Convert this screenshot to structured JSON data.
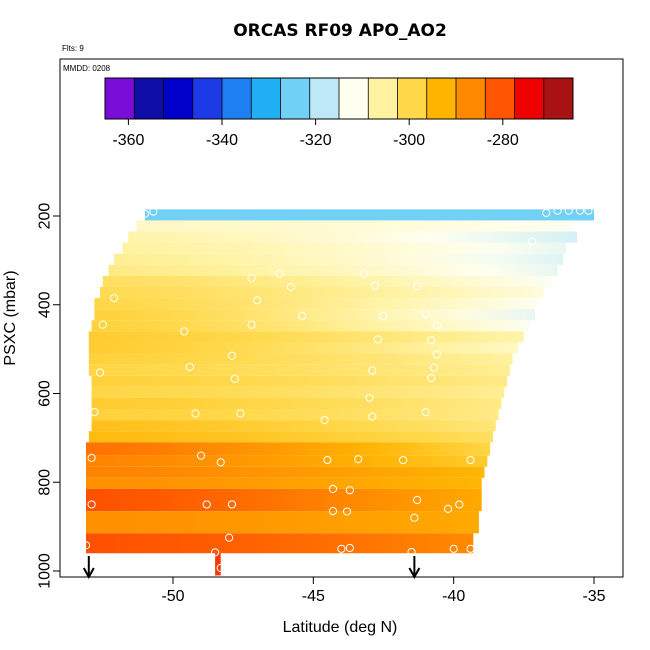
{
  "chart_data": {
    "type": "heatmap",
    "title": "ORCAS RF09 APO_AO2",
    "annotations": {
      "flights": "Flts: 9",
      "date": "MMDD: 0208"
    },
    "xlabel": "Latitude (deg N)",
    "ylabel": "PSXC (mbar)",
    "xlim": [
      -54,
      -35
    ],
    "ylim": [
      1000,
      120
    ],
    "y_reversed": true,
    "grid": false,
    "x_ticks": [
      -50,
      -45,
      -40,
      -35
    ],
    "y_ticks": [
      200,
      400,
      600,
      800,
      1000
    ],
    "colorbar": {
      "placement": "top",
      "range": [
        -365,
        -265
      ],
      "ticks": [
        -360,
        -340,
        -320,
        -300,
        -280
      ],
      "colors": [
        "#7a0dd6",
        "#0e0ea6",
        "#0000c8",
        "#1c3ae6",
        "#1e7ff0",
        "#22b0f5",
        "#70d0f5",
        "#bde8f8",
        "#fffff0",
        "#fff2a0",
        "#ffd84a",
        "#ffb400",
        "#ff8a00",
        "#ff5400",
        "#ee0000",
        "#a81212"
      ]
    },
    "rows": [
      {
        "p_top": 185,
        "p_bot": 210,
        "lat_min": -51.0,
        "lat_max": -35.0,
        "v_left": -325,
        "v_right": -325
      },
      {
        "p_top": 210,
        "p_bot": 235,
        "lat_min": -51.3,
        "lat_max": -35.8,
        "v_left": -308,
        "v_right": -312
      },
      {
        "p_top": 235,
        "p_bot": 260,
        "lat_min": -51.6,
        "lat_max": -35.6,
        "v_left": -306,
        "v_right": -316
      },
      {
        "p_top": 260,
        "p_bot": 285,
        "lat_min": -51.8,
        "lat_max": -36.0,
        "v_left": -305,
        "v_right": -314
      },
      {
        "p_top": 285,
        "p_bot": 310,
        "lat_min": -52.1,
        "lat_max": -36.1,
        "v_left": -304,
        "v_right": -315
      },
      {
        "p_top": 310,
        "p_bot": 335,
        "lat_min": -52.3,
        "lat_max": -36.3,
        "v_left": -303,
        "v_right": -314
      },
      {
        "p_top": 335,
        "p_bot": 360,
        "lat_min": -52.5,
        "lat_max": -36.5,
        "v_left": -300,
        "v_right": -312
      },
      {
        "p_top": 360,
        "p_bot": 385,
        "lat_min": -52.6,
        "lat_max": -36.8,
        "v_left": -299,
        "v_right": -310
      },
      {
        "p_top": 385,
        "p_bot": 410,
        "lat_min": -52.8,
        "lat_max": -37.0,
        "v_left": -298,
        "v_right": -312
      },
      {
        "p_top": 410,
        "p_bot": 435,
        "lat_min": -52.8,
        "lat_max": -37.1,
        "v_left": -297,
        "v_right": -314
      },
      {
        "p_top": 435,
        "p_bot": 460,
        "lat_min": -52.9,
        "lat_max": -37.3,
        "v_left": -297,
        "v_right": -312
      },
      {
        "p_top": 460,
        "p_bot": 485,
        "lat_min": -53.0,
        "lat_max": -37.5,
        "v_left": -296,
        "v_right": -306
      },
      {
        "p_top": 485,
        "p_bot": 510,
        "lat_min": -53.0,
        "lat_max": -37.7,
        "v_left": -296,
        "v_right": -308
      },
      {
        "p_top": 510,
        "p_bot": 535,
        "lat_min": -53.0,
        "lat_max": -37.9,
        "v_left": -297,
        "v_right": -305
      },
      {
        "p_top": 535,
        "p_bot": 560,
        "lat_min": -53.0,
        "lat_max": -38.0,
        "v_left": -298,
        "v_right": -304
      },
      {
        "p_top": 560,
        "p_bot": 585,
        "lat_min": -52.9,
        "lat_max": -38.1,
        "v_left": -297,
        "v_right": -303
      },
      {
        "p_top": 585,
        "p_bot": 610,
        "lat_min": -52.9,
        "lat_max": -38.2,
        "v_left": -298,
        "v_right": -304
      },
      {
        "p_top": 610,
        "p_bot": 635,
        "lat_min": -52.9,
        "lat_max": -38.3,
        "v_left": -296,
        "v_right": -303
      },
      {
        "p_top": 635,
        "p_bot": 660,
        "lat_min": -52.9,
        "lat_max": -38.4,
        "v_left": -297,
        "v_right": -303
      },
      {
        "p_top": 660,
        "p_bot": 685,
        "lat_min": -52.9,
        "lat_max": -38.5,
        "v_left": -294,
        "v_right": -302
      },
      {
        "p_top": 685,
        "p_bot": 710,
        "lat_min": -53.0,
        "lat_max": -38.6,
        "v_left": -293,
        "v_right": -300
      },
      {
        "p_top": 710,
        "p_bot": 740,
        "lat_min": -53.1,
        "lat_max": -38.7,
        "v_left": -282,
        "v_right": -298
      },
      {
        "p_top": 740,
        "p_bot": 765,
        "lat_min": -53.1,
        "lat_max": -38.8,
        "v_left": -284,
        "v_right": -296
      },
      {
        "p_top": 765,
        "p_bot": 790,
        "lat_min": -53.1,
        "lat_max": -38.9,
        "v_left": -284,
        "v_right": -292
      },
      {
        "p_top": 790,
        "p_bot": 815,
        "lat_min": -53.1,
        "lat_max": -39.0,
        "v_left": -286,
        "v_right": -292
      },
      {
        "p_top": 815,
        "p_bot": 865,
        "lat_min": -53.1,
        "lat_max": -39.0,
        "v_left": -278,
        "v_right": -290
      },
      {
        "p_top": 865,
        "p_bot": 915,
        "lat_min": -53.1,
        "lat_max": -39.1,
        "v_left": -286,
        "v_right": -290
      },
      {
        "p_top": 915,
        "p_bot": 960,
        "lat_min": -53.1,
        "lat_max": -39.3,
        "v_left": -278,
        "v_right": -285
      },
      {
        "p_top": 960,
        "p_bot": 1010,
        "lat_min": -48.5,
        "lat_max": -48.3,
        "v_left": -276,
        "v_right": -276
      }
    ],
    "points": [
      {
        "lat": -51.0,
        "p": 195
      },
      {
        "lat": -50.7,
        "p": 190
      },
      {
        "lat": -36.7,
        "p": 193
      },
      {
        "lat": -36.3,
        "p": 188
      },
      {
        "lat": -35.9,
        "p": 188
      },
      {
        "lat": -35.5,
        "p": 188
      },
      {
        "lat": -35.2,
        "p": 188
      },
      {
        "lat": -37.2,
        "p": 258
      },
      {
        "lat": -47.2,
        "p": 340
      },
      {
        "lat": -46.2,
        "p": 330
      },
      {
        "lat": -45.8,
        "p": 360
      },
      {
        "lat": -43.2,
        "p": 330
      },
      {
        "lat": -42.8,
        "p": 357
      },
      {
        "lat": -41.3,
        "p": 358
      },
      {
        "lat": -52.1,
        "p": 385
      },
      {
        "lat": -47.0,
        "p": 390
      },
      {
        "lat": -45.4,
        "p": 425
      },
      {
        "lat": -42.5,
        "p": 425
      },
      {
        "lat": -41.0,
        "p": 420
      },
      {
        "lat": -52.5,
        "p": 445
      },
      {
        "lat": -47.2,
        "p": 445
      },
      {
        "lat": -49.6,
        "p": 460
      },
      {
        "lat": -40.6,
        "p": 446
      },
      {
        "lat": -42.7,
        "p": 478
      },
      {
        "lat": -40.8,
        "p": 480
      },
      {
        "lat": -47.9,
        "p": 515
      },
      {
        "lat": -40.6,
        "p": 512
      },
      {
        "lat": -52.6,
        "p": 553
      },
      {
        "lat": -49.4,
        "p": 540
      },
      {
        "lat": -42.9,
        "p": 548
      },
      {
        "lat": -40.7,
        "p": 542
      },
      {
        "lat": -40.8,
        "p": 565
      },
      {
        "lat": -47.8,
        "p": 567
      },
      {
        "lat": -43.0,
        "p": 610
      },
      {
        "lat": -52.8,
        "p": 642
      },
      {
        "lat": -49.2,
        "p": 645
      },
      {
        "lat": -47.6,
        "p": 645
      },
      {
        "lat": -42.9,
        "p": 652
      },
      {
        "lat": -41.0,
        "p": 642
      },
      {
        "lat": -44.6,
        "p": 660
      },
      {
        "lat": -52.9,
        "p": 745
      },
      {
        "lat": -49.0,
        "p": 740
      },
      {
        "lat": -48.3,
        "p": 755
      },
      {
        "lat": -44.5,
        "p": 750
      },
      {
        "lat": -43.4,
        "p": 748
      },
      {
        "lat": -41.8,
        "p": 750
      },
      {
        "lat": -39.4,
        "p": 750
      },
      {
        "lat": -44.3,
        "p": 815
      },
      {
        "lat": -43.7,
        "p": 818
      },
      {
        "lat": -52.9,
        "p": 850
      },
      {
        "lat": -48.8,
        "p": 850
      },
      {
        "lat": -47.9,
        "p": 850
      },
      {
        "lat": -41.3,
        "p": 840
      },
      {
        "lat": -39.8,
        "p": 850
      },
      {
        "lat": -44.3,
        "p": 865
      },
      {
        "lat": -43.8,
        "p": 866
      },
      {
        "lat": -41.4,
        "p": 880
      },
      {
        "lat": -40.2,
        "p": 860
      },
      {
        "lat": -48.0,
        "p": 925
      },
      {
        "lat": -53.1,
        "p": 942
      },
      {
        "lat": -48.5,
        "p": 958
      },
      {
        "lat": -44.0,
        "p": 950
      },
      {
        "lat": -43.7,
        "p": 948
      },
      {
        "lat": -41.5,
        "p": 957
      },
      {
        "lat": -40.0,
        "p": 950
      },
      {
        "lat": -39.4,
        "p": 950
      },
      {
        "lat": -48.3,
        "p": 993
      }
    ],
    "arrows_lat": [
      -53.0,
      -41.4
    ]
  }
}
